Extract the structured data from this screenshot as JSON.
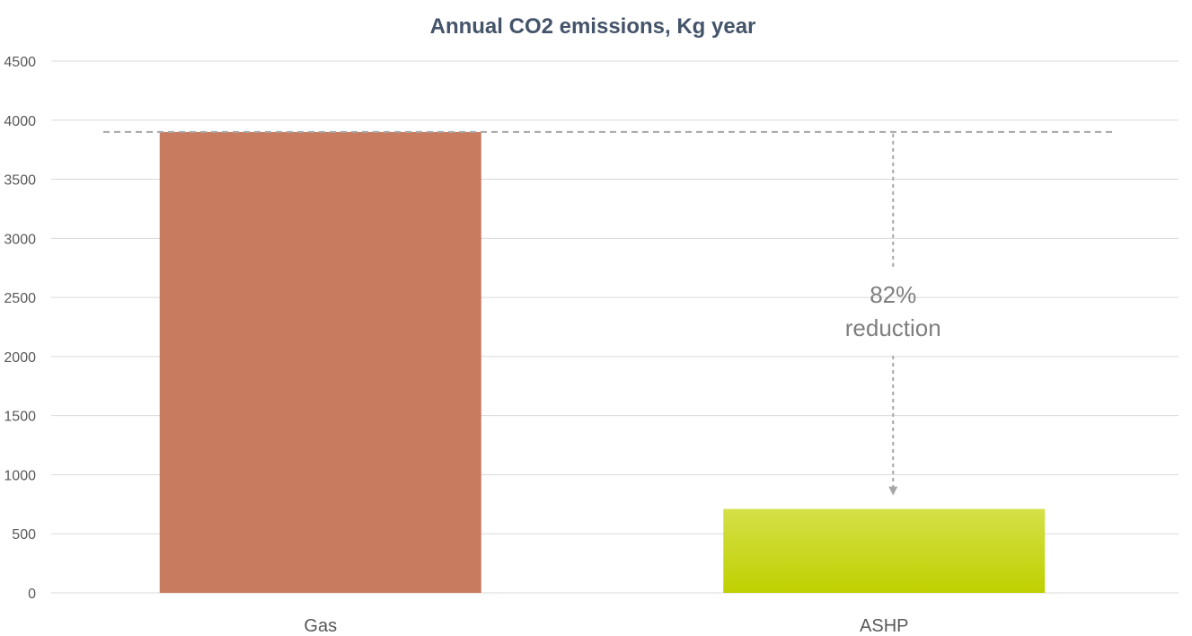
{
  "chart_data": {
    "type": "bar",
    "title": "Annual CO2 emissions, Kg year",
    "xlabel": "",
    "ylabel": "",
    "categories": [
      "Gas",
      "ASHP"
    ],
    "values": [
      3900,
      710
    ],
    "ylim": [
      0,
      4500
    ],
    "yticks": [
      "0",
      "500",
      "1000",
      "1500",
      "2000",
      "2500",
      "3000",
      "3500",
      "4000",
      "4500"
    ],
    "grid": true,
    "legend": "none",
    "colors": {
      "Gas": "#C97B60",
      "ASHP_top": "#D4E048",
      "ASHP_bottom": "#BFD000",
      "reference_line": "#A6A6A6"
    },
    "annotation": {
      "line1": "82%",
      "line2": "reduction"
    }
  }
}
